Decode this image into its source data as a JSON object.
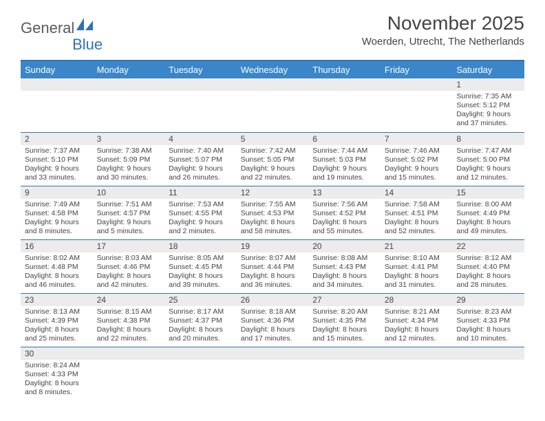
{
  "logo": {
    "text1": "General",
    "text2": "Blue"
  },
  "title": "November 2025",
  "location": "Woerden, Utrecht, The Netherlands",
  "colors": {
    "header_bg": "#3a86c8",
    "rule": "#2f73b5",
    "daynum_bg": "#ececec",
    "text": "#444444",
    "logo_gray": "#5a5a5a",
    "logo_blue": "#2f73b5",
    "page_bg": "#ffffff"
  },
  "day_names": [
    "Sunday",
    "Monday",
    "Tuesday",
    "Wednesday",
    "Thursday",
    "Friday",
    "Saturday"
  ],
  "layout": {
    "first_weekday_index": 6,
    "days": 30,
    "cols": 7
  },
  "days": {
    "1": {
      "sunrise": "7:35 AM",
      "sunset": "5:12 PM",
      "daylight": "9 hours and 37 minutes."
    },
    "2": {
      "sunrise": "7:37 AM",
      "sunset": "5:10 PM",
      "daylight": "9 hours and 33 minutes."
    },
    "3": {
      "sunrise": "7:38 AM",
      "sunset": "5:09 PM",
      "daylight": "9 hours and 30 minutes."
    },
    "4": {
      "sunrise": "7:40 AM",
      "sunset": "5:07 PM",
      "daylight": "9 hours and 26 minutes."
    },
    "5": {
      "sunrise": "7:42 AM",
      "sunset": "5:05 PM",
      "daylight": "9 hours and 22 minutes."
    },
    "6": {
      "sunrise": "7:44 AM",
      "sunset": "5:03 PM",
      "daylight": "9 hours and 19 minutes."
    },
    "7": {
      "sunrise": "7:46 AM",
      "sunset": "5:02 PM",
      "daylight": "9 hours and 15 minutes."
    },
    "8": {
      "sunrise": "7:47 AM",
      "sunset": "5:00 PM",
      "daylight": "9 hours and 12 minutes."
    },
    "9": {
      "sunrise": "7:49 AM",
      "sunset": "4:58 PM",
      "daylight": "9 hours and 8 minutes."
    },
    "10": {
      "sunrise": "7:51 AM",
      "sunset": "4:57 PM",
      "daylight": "9 hours and 5 minutes."
    },
    "11": {
      "sunrise": "7:53 AM",
      "sunset": "4:55 PM",
      "daylight": "9 hours and 2 minutes."
    },
    "12": {
      "sunrise": "7:55 AM",
      "sunset": "4:53 PM",
      "daylight": "8 hours and 58 minutes."
    },
    "13": {
      "sunrise": "7:56 AM",
      "sunset": "4:52 PM",
      "daylight": "8 hours and 55 minutes."
    },
    "14": {
      "sunrise": "7:58 AM",
      "sunset": "4:51 PM",
      "daylight": "8 hours and 52 minutes."
    },
    "15": {
      "sunrise": "8:00 AM",
      "sunset": "4:49 PM",
      "daylight": "8 hours and 49 minutes."
    },
    "16": {
      "sunrise": "8:02 AM",
      "sunset": "4:48 PM",
      "daylight": "8 hours and 46 minutes."
    },
    "17": {
      "sunrise": "8:03 AM",
      "sunset": "4:46 PM",
      "daylight": "8 hours and 42 minutes."
    },
    "18": {
      "sunrise": "8:05 AM",
      "sunset": "4:45 PM",
      "daylight": "8 hours and 39 minutes."
    },
    "19": {
      "sunrise": "8:07 AM",
      "sunset": "4:44 PM",
      "daylight": "8 hours and 36 minutes."
    },
    "20": {
      "sunrise": "8:08 AM",
      "sunset": "4:43 PM",
      "daylight": "8 hours and 34 minutes."
    },
    "21": {
      "sunrise": "8:10 AM",
      "sunset": "4:41 PM",
      "daylight": "8 hours and 31 minutes."
    },
    "22": {
      "sunrise": "8:12 AM",
      "sunset": "4:40 PM",
      "daylight": "8 hours and 28 minutes."
    },
    "23": {
      "sunrise": "8:13 AM",
      "sunset": "4:39 PM",
      "daylight": "8 hours and 25 minutes."
    },
    "24": {
      "sunrise": "8:15 AM",
      "sunset": "4:38 PM",
      "daylight": "8 hours and 22 minutes."
    },
    "25": {
      "sunrise": "8:17 AM",
      "sunset": "4:37 PM",
      "daylight": "8 hours and 20 minutes."
    },
    "26": {
      "sunrise": "8:18 AM",
      "sunset": "4:36 PM",
      "daylight": "8 hours and 17 minutes."
    },
    "27": {
      "sunrise": "8:20 AM",
      "sunset": "4:35 PM",
      "daylight": "8 hours and 15 minutes."
    },
    "28": {
      "sunrise": "8:21 AM",
      "sunset": "4:34 PM",
      "daylight": "8 hours and 12 minutes."
    },
    "29": {
      "sunrise": "8:23 AM",
      "sunset": "4:33 PM",
      "daylight": "8 hours and 10 minutes."
    },
    "30": {
      "sunrise": "8:24 AM",
      "sunset": "4:33 PM",
      "daylight": "8 hours and 8 minutes."
    }
  },
  "labels": {
    "sunrise": "Sunrise:",
    "sunset": "Sunset:",
    "daylight": "Daylight:"
  }
}
